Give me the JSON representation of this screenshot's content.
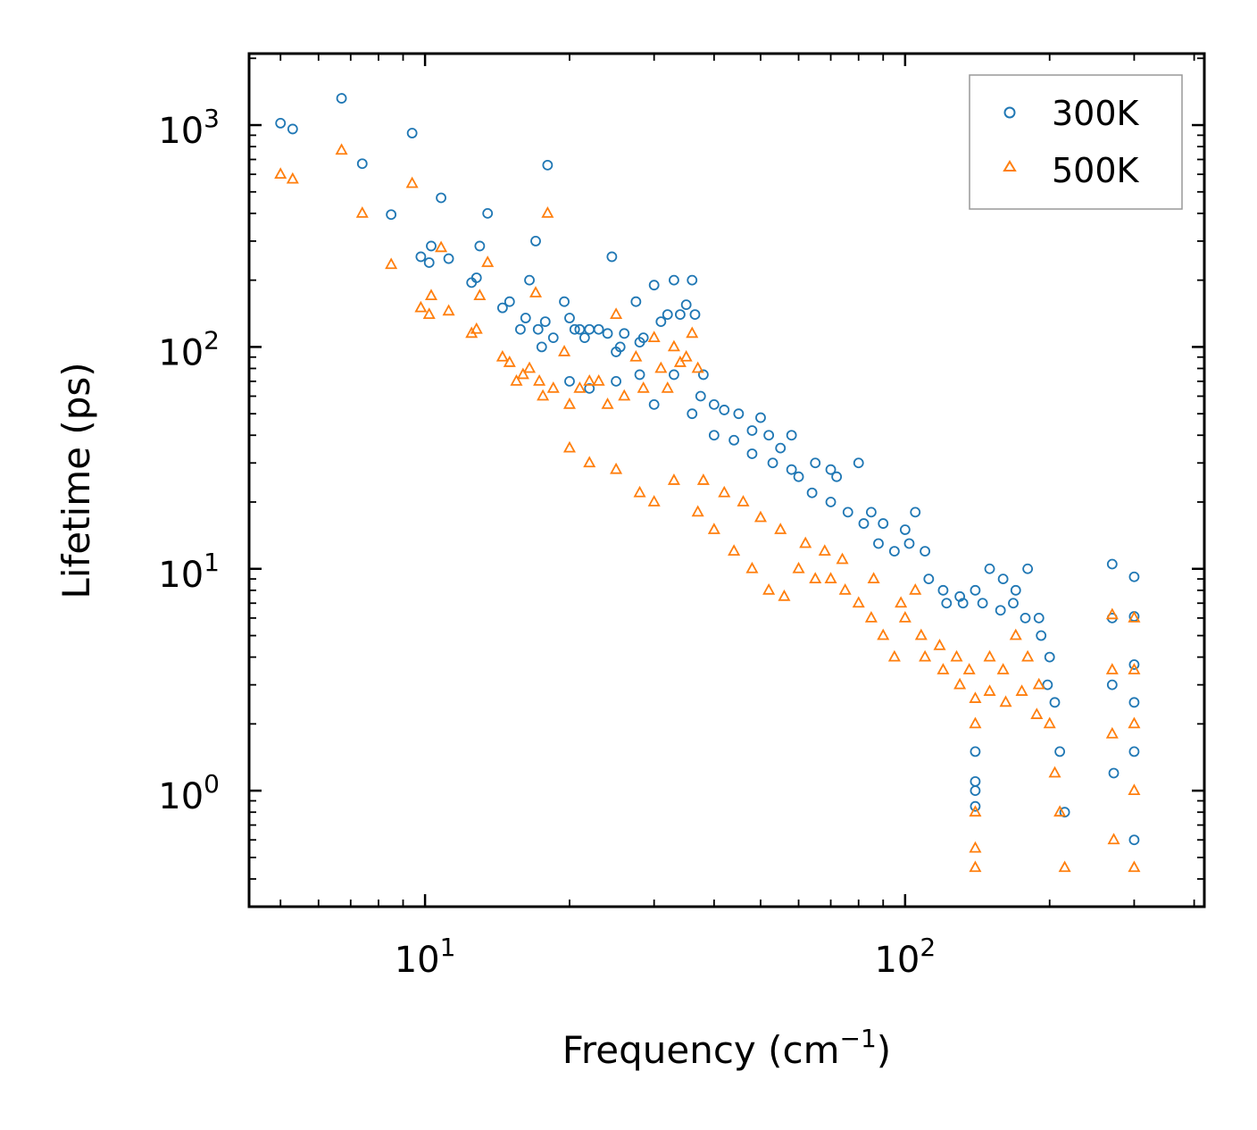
{
  "chart_data": {
    "type": "scatter",
    "title": "",
    "xlabel": "Frequency (cm",
    "xlabel_sup": "−1",
    "xlabel_close": ")",
    "ylabel": "Lifetime (ps)",
    "xscale": "log",
    "yscale": "log",
    "xlim": [
      4.3,
      420
    ],
    "ylim": [
      0.3,
      2100
    ],
    "x_ticks": [
      {
        "value": 10,
        "base": "10",
        "exp": "1"
      },
      {
        "value": 100,
        "base": "10",
        "exp": "2"
      }
    ],
    "y_ticks": [
      {
        "value": 1,
        "base": "10",
        "exp": "0"
      },
      {
        "value": 10,
        "base": "10",
        "exp": "1"
      },
      {
        "value": 100,
        "base": "10",
        "exp": "2"
      },
      {
        "value": 1000,
        "base": "10",
        "exp": "3"
      }
    ],
    "legend_position": "top-right",
    "series": [
      {
        "name": "300K",
        "marker": "circle",
        "color": "#1f77b4",
        "points": [
          [
            5.0,
            1020
          ],
          [
            5.3,
            960
          ],
          [
            6.7,
            1320
          ],
          [
            7.4,
            670
          ],
          [
            8.5,
            395
          ],
          [
            9.4,
            920
          ],
          [
            9.8,
            255
          ],
          [
            10.3,
            285
          ],
          [
            10.2,
            240
          ],
          [
            10.8,
            470
          ],
          [
            11.2,
            250
          ],
          [
            12.5,
            195
          ],
          [
            12.8,
            205
          ],
          [
            13.0,
            285
          ],
          [
            13.5,
            400
          ],
          [
            14.5,
            150
          ],
          [
            15.0,
            160
          ],
          [
            15.8,
            120
          ],
          [
            16.2,
            135
          ],
          [
            16.5,
            200
          ],
          [
            17.0,
            300
          ],
          [
            17.2,
            120
          ],
          [
            17.5,
            100
          ],
          [
            17.8,
            130
          ],
          [
            18.0,
            660
          ],
          [
            18.5,
            110
          ],
          [
            19.5,
            160
          ],
          [
            20.0,
            135
          ],
          [
            20.5,
            120
          ],
          [
            21.0,
            120
          ],
          [
            21.5,
            110
          ],
          [
            22.0,
            120
          ],
          [
            23.0,
            120
          ],
          [
            24.0,
            115
          ],
          [
            24.5,
            255
          ],
          [
            25.0,
            95
          ],
          [
            25.5,
            100
          ],
          [
            26.0,
            115
          ],
          [
            27.5,
            160
          ],
          [
            28.0,
            105
          ],
          [
            28.5,
            110
          ],
          [
            30.0,
            190
          ],
          [
            31.0,
            130
          ],
          [
            32.0,
            140
          ],
          [
            33.0,
            200
          ],
          [
            34.0,
            140
          ],
          [
            35.0,
            155
          ],
          [
            36.0,
            200
          ],
          [
            36.5,
            140
          ],
          [
            37.5,
            60
          ],
          [
            38.0,
            75
          ],
          [
            40.0,
            55
          ],
          [
            42.0,
            52
          ],
          [
            45.0,
            50
          ],
          [
            48.0,
            42
          ],
          [
            50.0,
            48
          ],
          [
            52.0,
            40
          ],
          [
            55.0,
            35
          ],
          [
            58.0,
            40
          ],
          [
            60.0,
            26
          ],
          [
            65.0,
            30
          ],
          [
            70.0,
            28
          ],
          [
            72.0,
            26
          ],
          [
            80.0,
            30
          ],
          [
            85.0,
            18
          ],
          [
            90.0,
            16
          ],
          [
            100.0,
            15
          ],
          [
            105.0,
            18
          ],
          [
            110.0,
            12
          ],
          [
            120.0,
            8
          ],
          [
            130.0,
            7.5
          ],
          [
            140.0,
            8
          ],
          [
            150.0,
            10
          ],
          [
            160.0,
            9
          ],
          [
            170.0,
            8
          ],
          [
            180.0,
            10
          ],
          [
            190.0,
            6
          ],
          [
            200.0,
            4
          ],
          [
            205.0,
            2.5
          ],
          [
            210.0,
            1.5
          ],
          [
            215.0,
            0.8
          ],
          [
            140.0,
            1.5
          ],
          [
            140.0,
            1.1
          ],
          [
            140.0,
            1.0
          ],
          [
            140.0,
            0.85
          ],
          [
            270.0,
            10.5
          ],
          [
            270.0,
            6
          ],
          [
            270.0,
            3
          ],
          [
            272.0,
            1.2
          ],
          [
            300.0,
            9.2
          ],
          [
            300.0,
            6.1
          ],
          [
            300.0,
            3.7
          ],
          [
            300.0,
            2.5
          ],
          [
            300.0,
            1.5
          ],
          [
            300.0,
            0.6
          ],
          [
            20.0,
            70
          ],
          [
            22.0,
            65
          ],
          [
            25.0,
            70
          ],
          [
            28.0,
            75
          ],
          [
            30.0,
            55
          ],
          [
            33.0,
            75
          ],
          [
            36.0,
            50
          ],
          [
            40.0,
            40
          ],
          [
            44.0,
            38
          ],
          [
            48.0,
            33
          ],
          [
            53.0,
            30
          ],
          [
            58.0,
            28
          ],
          [
            64.0,
            22
          ],
          [
            70.0,
            20
          ],
          [
            76.0,
            18
          ],
          [
            82.0,
            16
          ],
          [
            88.0,
            13
          ],
          [
            95.0,
            12
          ],
          [
            102.0,
            13
          ],
          [
            112.0,
            9
          ],
          [
            122.0,
            7
          ],
          [
            132.0,
            7
          ],
          [
            145.0,
            7
          ],
          [
            158.0,
            6.5
          ],
          [
            168.0,
            7
          ],
          [
            178.0,
            6
          ],
          [
            192.0,
            5
          ],
          [
            198.0,
            3
          ]
        ]
      },
      {
        "name": "500K",
        "marker": "triangle",
        "color": "#ff7f0e",
        "points": [
          [
            5.0,
            600
          ],
          [
            5.3,
            570
          ],
          [
            6.7,
            770
          ],
          [
            7.4,
            400
          ],
          [
            8.5,
            235
          ],
          [
            9.4,
            545
          ],
          [
            9.8,
            150
          ],
          [
            10.2,
            140
          ],
          [
            10.3,
            170
          ],
          [
            10.8,
            280
          ],
          [
            11.2,
            145
          ],
          [
            12.5,
            115
          ],
          [
            12.8,
            120
          ],
          [
            13.0,
            170
          ],
          [
            13.5,
            240
          ],
          [
            14.5,
            90
          ],
          [
            15.0,
            85
          ],
          [
            15.5,
            70
          ],
          [
            16.0,
            75
          ],
          [
            16.5,
            80
          ],
          [
            17.0,
            175
          ],
          [
            17.3,
            70
          ],
          [
            17.6,
            60
          ],
          [
            18.0,
            400
          ],
          [
            18.5,
            65
          ],
          [
            19.5,
            95
          ],
          [
            20.0,
            55
          ],
          [
            21.0,
            65
          ],
          [
            22.0,
            70
          ],
          [
            23.0,
            70
          ],
          [
            24.0,
            55
          ],
          [
            25.0,
            140
          ],
          [
            26.0,
            60
          ],
          [
            27.5,
            90
          ],
          [
            28.5,
            65
          ],
          [
            30.0,
            110
          ],
          [
            31.0,
            80
          ],
          [
            32.0,
            65
          ],
          [
            33.0,
            100
          ],
          [
            34.0,
            85
          ],
          [
            35.0,
            90
          ],
          [
            36.0,
            115
          ],
          [
            37.0,
            80
          ],
          [
            20.0,
            35
          ],
          [
            22.0,
            30
          ],
          [
            25.0,
            28
          ],
          [
            28.0,
            22
          ],
          [
            30.0,
            20
          ],
          [
            33.0,
            25
          ],
          [
            37.0,
            18
          ],
          [
            40.0,
            15
          ],
          [
            44.0,
            12
          ],
          [
            48.0,
            10
          ],
          [
            52.0,
            8
          ],
          [
            56.0,
            7.5
          ],
          [
            60.0,
            10
          ],
          [
            65.0,
            9
          ],
          [
            70.0,
            9
          ],
          [
            75.0,
            8
          ],
          [
            80.0,
            7
          ],
          [
            85.0,
            6
          ],
          [
            90.0,
            5
          ],
          [
            95.0,
            4
          ],
          [
            100.0,
            6
          ],
          [
            105.0,
            8
          ],
          [
            110.0,
            4
          ],
          [
            120.0,
            3.5
          ],
          [
            130.0,
            3
          ],
          [
            140.0,
            2.6
          ],
          [
            140.0,
            2.0
          ],
          [
            140.0,
            0.8
          ],
          [
            140.0,
            0.55
          ],
          [
            140.0,
            0.45
          ],
          [
            150.0,
            4
          ],
          [
            160.0,
            3.5
          ],
          [
            170.0,
            5
          ],
          [
            180.0,
            4
          ],
          [
            190.0,
            3
          ],
          [
            200.0,
            2
          ],
          [
            205.0,
            1.2
          ],
          [
            210.0,
            0.8
          ],
          [
            215.0,
            0.45
          ],
          [
            270.0,
            6.2
          ],
          [
            270.0,
            3.5
          ],
          [
            270.0,
            1.8
          ],
          [
            272.0,
            0.6
          ],
          [
            300.0,
            6
          ],
          [
            300.0,
            3.5
          ],
          [
            300.0,
            2.0
          ],
          [
            300.0,
            1.0
          ],
          [
            300.0,
            0.45
          ],
          [
            38.0,
            25
          ],
          [
            42.0,
            22
          ],
          [
            46.0,
            20
          ],
          [
            50.0,
            17
          ],
          [
            55.0,
            15
          ],
          [
            62.0,
            13
          ],
          [
            68.0,
            12
          ],
          [
            74.0,
            11
          ],
          [
            86.0,
            9
          ],
          [
            98.0,
            7
          ],
          [
            108.0,
            5
          ],
          [
            118.0,
            4.5
          ],
          [
            128.0,
            4
          ],
          [
            136.0,
            3.5
          ],
          [
            150.0,
            2.8
          ],
          [
            162.0,
            2.5
          ],
          [
            175.0,
            2.8
          ],
          [
            188.0,
            2.2
          ]
        ]
      }
    ]
  }
}
